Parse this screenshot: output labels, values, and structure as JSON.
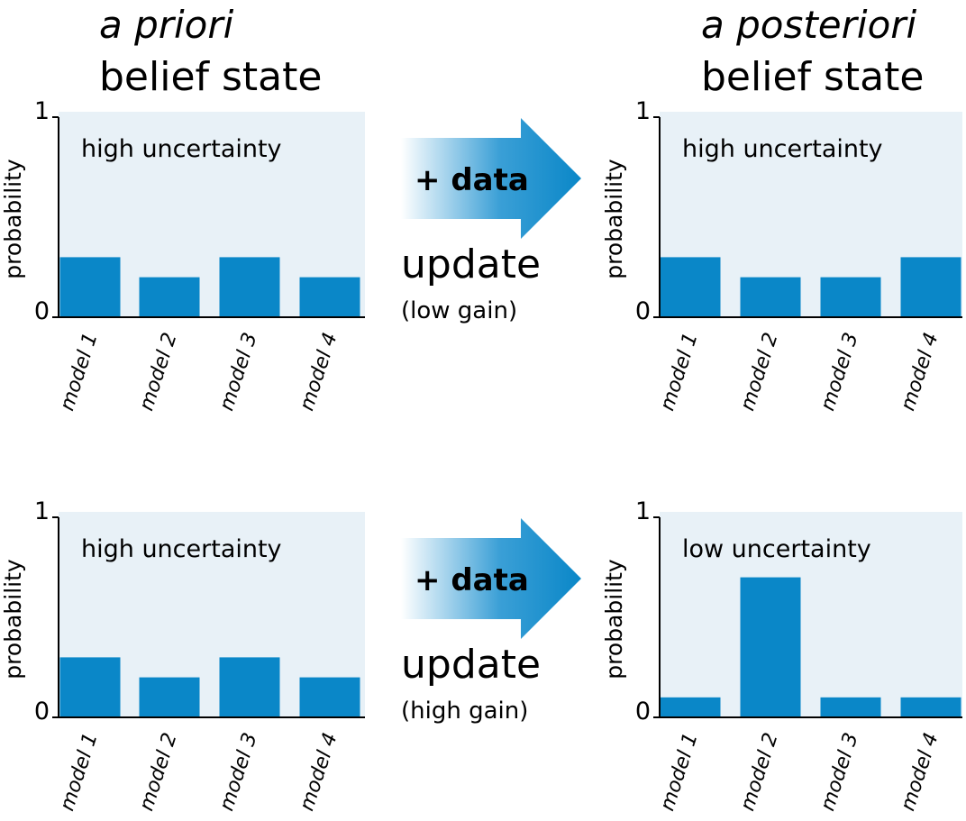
{
  "headers": {
    "left": {
      "line1": "a priori",
      "line2": "belief state"
    },
    "right": {
      "line1": "a posteriori",
      "line2": "belief state"
    }
  },
  "arrows": [
    {
      "label": "+ data",
      "update": "update",
      "gain": "(low gain)"
    },
    {
      "label": "+ data",
      "update": "update",
      "gain": "(high gain)"
    }
  ],
  "colors": {
    "bar": "#0a87c8",
    "panel": "#e8f1f7",
    "axis": "#000000"
  },
  "chart_data": [
    {
      "type": "bar",
      "categories": [
        "model 1",
        "model 2",
        "model 3",
        "model 4"
      ],
      "values": [
        0.3,
        0.2,
        0.3,
        0.2
      ],
      "ylabel": "probability",
      "ylim": [
        0,
        1
      ],
      "yticks": [
        "0",
        "1"
      ],
      "annotation": "high uncertainty"
    },
    {
      "type": "bar",
      "categories": [
        "model 1",
        "model 2",
        "model 3",
        "model 4"
      ],
      "values": [
        0.3,
        0.2,
        0.2,
        0.3
      ],
      "ylabel": "probability",
      "ylim": [
        0,
        1
      ],
      "yticks": [
        "0",
        "1"
      ],
      "annotation": "high uncertainty"
    },
    {
      "type": "bar",
      "categories": [
        "model 1",
        "model 2",
        "model 3",
        "model 4"
      ],
      "values": [
        0.3,
        0.2,
        0.3,
        0.2
      ],
      "ylabel": "probability",
      "ylim": [
        0,
        1
      ],
      "yticks": [
        "0",
        "1"
      ],
      "annotation": "high uncertainty"
    },
    {
      "type": "bar",
      "categories": [
        "model 1",
        "model 2",
        "model 3",
        "model 4"
      ],
      "values": [
        0.1,
        0.7,
        0.1,
        0.1
      ],
      "ylabel": "probability",
      "ylim": [
        0,
        1
      ],
      "yticks": [
        "0",
        "1"
      ],
      "annotation": "low uncertainty"
    }
  ]
}
